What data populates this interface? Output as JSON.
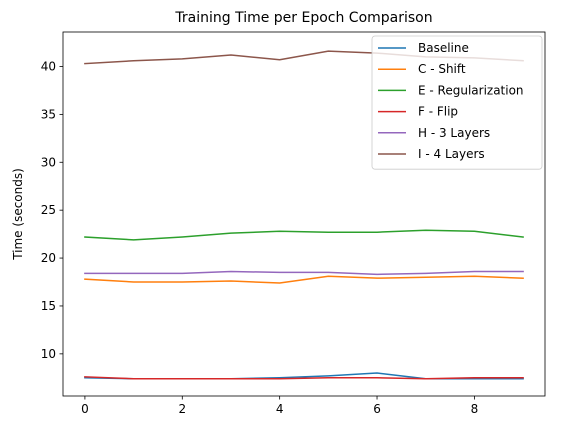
{
  "chart_data": {
    "type": "line",
    "title": "Training Time per Epoch Comparison",
    "xlabel": "",
    "ylabel": "Time (seconds)",
    "xlim": [
      -0.45,
      9.45
    ],
    "ylim": [
      5.6,
      43.6
    ],
    "xticks": [
      0,
      2,
      4,
      6,
      8
    ],
    "yticks": [
      10,
      15,
      20,
      25,
      30,
      35,
      40
    ],
    "grid": false,
    "legend_position": "top-right",
    "x": [
      0,
      1,
      2,
      3,
      4,
      5,
      6,
      7,
      8,
      9
    ],
    "series": [
      {
        "name": "Baseline",
        "color": "#1f77b4",
        "values": [
          7.5,
          7.4,
          7.4,
          7.4,
          7.5,
          7.7,
          8.0,
          7.4,
          7.4,
          7.4
        ]
      },
      {
        "name": "C - Shift",
        "color": "#ff7f0e",
        "values": [
          17.8,
          17.5,
          17.5,
          17.6,
          17.4,
          18.1,
          17.9,
          18.0,
          18.1,
          17.9
        ]
      },
      {
        "name": "E - Regularization",
        "color": "#2ca02c",
        "values": [
          22.2,
          21.9,
          22.2,
          22.6,
          22.8,
          22.7,
          22.7,
          22.9,
          22.8,
          22.2
        ]
      },
      {
        "name": "F - Flip",
        "color": "#d62728",
        "values": [
          7.6,
          7.4,
          7.4,
          7.4,
          7.4,
          7.5,
          7.5,
          7.4,
          7.5,
          7.5
        ]
      },
      {
        "name": "H - 3 Layers",
        "color": "#9467bd",
        "values": [
          18.4,
          18.4,
          18.4,
          18.6,
          18.5,
          18.5,
          18.3,
          18.4,
          18.6,
          18.6
        ]
      },
      {
        "name": "I - 4 Layers",
        "color": "#8c564b",
        "values": [
          40.3,
          40.6,
          40.8,
          41.2,
          40.7,
          41.6,
          41.4,
          41.0,
          40.9,
          40.6
        ]
      }
    ]
  }
}
